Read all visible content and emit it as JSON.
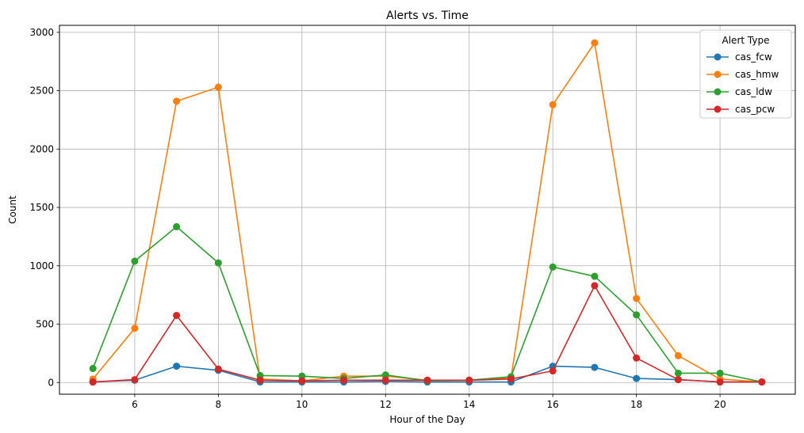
{
  "chart_data": {
    "type": "line",
    "title": "Alerts vs. Time",
    "xlabel": "Hour of the Day",
    "ylabel": "Count",
    "x": [
      5,
      6,
      7,
      8,
      9,
      10,
      11,
      12,
      13,
      14,
      15,
      16,
      17,
      18,
      19,
      20,
      21
    ],
    "xlim": [
      4.2,
      21.8
    ],
    "ylim": [
      -100,
      3060
    ],
    "xticks": [
      6,
      8,
      10,
      12,
      14,
      16,
      18,
      20
    ],
    "yticks": [
      0,
      500,
      1000,
      1500,
      2000,
      2500,
      3000
    ],
    "grid": true,
    "legend_title": "Alert Type",
    "legend_position": "top-right",
    "series": [
      {
        "name": "cas_fcw",
        "color": "#1f77b4",
        "values": [
          5,
          20,
          140,
          105,
          5,
          5,
          5,
          10,
          5,
          5,
          5,
          140,
          130,
          35,
          25,
          5,
          5
        ]
      },
      {
        "name": "cas_hmw",
        "color": "#ff7f0e",
        "values": [
          30,
          465,
          2410,
          2530,
          30,
          15,
          55,
          55,
          20,
          20,
          40,
          2380,
          2910,
          720,
          230,
          30,
          5
        ]
      },
      {
        "name": "cas_ldw",
        "color": "#2ca02c",
        "values": [
          120,
          1040,
          1335,
          1025,
          60,
          55,
          35,
          65,
          15,
          20,
          50,
          990,
          910,
          580,
          80,
          80,
          5
        ]
      },
      {
        "name": "cas_pcw",
        "color": "#d62728",
        "values": [
          5,
          25,
          575,
          115,
          20,
          15,
          20,
          20,
          20,
          20,
          30,
          100,
          830,
          210,
          25,
          5,
          5
        ]
      }
    ]
  }
}
